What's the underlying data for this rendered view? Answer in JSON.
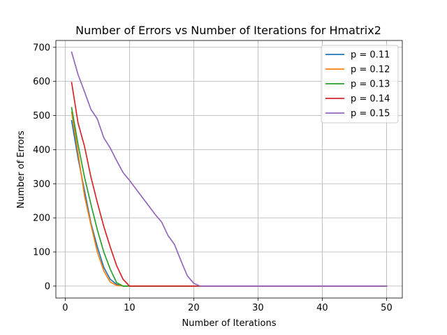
{
  "chart_data": {
    "type": "line",
    "title": "Number of Errors vs Number of Iterations for Hmatrix2",
    "xlabel": "Number of Iterations",
    "ylabel": "Number of Errors",
    "xlim": [
      -1.45,
      52.45
    ],
    "ylim": [
      -35,
      720
    ],
    "xticks": [
      0,
      10,
      20,
      30,
      40,
      50
    ],
    "yticks": [
      0,
      100,
      200,
      300,
      400,
      500,
      600,
      700
    ],
    "grid": true,
    "legend_position": "top-right",
    "series": [
      {
        "name": "p = 0.11",
        "color": "#1f77b4",
        "x": [
          1,
          2,
          3,
          4,
          5,
          6,
          7,
          8,
          9,
          10,
          11,
          12,
          13,
          14,
          15,
          16,
          17,
          18,
          19,
          20,
          21,
          22,
          23,
          24,
          25,
          26,
          27,
          28,
          29,
          30,
          31,
          32,
          33,
          34,
          35,
          36,
          37,
          38,
          39,
          40,
          41,
          42,
          43,
          44,
          45,
          46,
          47,
          48,
          49,
          50
        ],
        "y": [
          485,
          375,
          280,
          185,
          115,
          55,
          20,
          5,
          0,
          0,
          0,
          0,
          0,
          0,
          0,
          0,
          0,
          0,
          0,
          0,
          0,
          0,
          0,
          0,
          0,
          0,
          0,
          0,
          0,
          0,
          0,
          0,
          0,
          0,
          0,
          0,
          0,
          0,
          0,
          0,
          0,
          0,
          0,
          0,
          0,
          0,
          0,
          0,
          0,
          0
        ]
      },
      {
        "name": "p = 0.12",
        "color": "#ff7f0e",
        "x": [
          1,
          2,
          3,
          4,
          5,
          6,
          7,
          8,
          9,
          10,
          11,
          12,
          13,
          14,
          15,
          16,
          17,
          18,
          19,
          20,
          21,
          22,
          23,
          24,
          25,
          26,
          27,
          28,
          29,
          30,
          31,
          32,
          33,
          34,
          35,
          36,
          37,
          38,
          39,
          40,
          41,
          42,
          43,
          44,
          45,
          46,
          47,
          48,
          49,
          50
        ],
        "y": [
          510,
          390,
          265,
          180,
          100,
          45,
          12,
          2,
          0,
          0,
          0,
          0,
          0,
          0,
          0,
          0,
          0,
          0,
          0,
          0,
          0,
          0,
          0,
          0,
          0,
          0,
          0,
          0,
          0,
          0,
          0,
          0,
          0,
          0,
          0,
          0,
          0,
          0,
          0,
          0,
          0,
          0,
          0,
          0,
          0,
          0,
          0,
          0,
          0,
          0
        ]
      },
      {
        "name": "p = 0.13",
        "color": "#2ca02c",
        "x": [
          1,
          2,
          3,
          4,
          5,
          6,
          7,
          8,
          9,
          10,
          11,
          12,
          13,
          14,
          15,
          16,
          17,
          18,
          19,
          20,
          21,
          22,
          23,
          24,
          25,
          26,
          27,
          28,
          29,
          30,
          31,
          32,
          33,
          34,
          35,
          36,
          37,
          38,
          39,
          40,
          41,
          42,
          43,
          44,
          45,
          46,
          47,
          48,
          49,
          50
        ],
        "y": [
          523,
          415,
          320,
          240,
          165,
          100,
          50,
          10,
          0,
          0,
          0,
          0,
          0,
          0,
          0,
          0,
          0,
          0,
          0,
          0,
          0,
          0,
          0,
          0,
          0,
          0,
          0,
          0,
          0,
          0,
          0,
          0,
          0,
          0,
          0,
          0,
          0,
          0,
          0,
          0,
          0,
          0,
          0,
          0,
          0,
          0,
          0,
          0,
          0,
          0
        ]
      },
      {
        "name": "p = 0.14",
        "color": "#d62728",
        "x": [
          1,
          2,
          3,
          4,
          5,
          6,
          7,
          8,
          9,
          10,
          11,
          12,
          13,
          14,
          15,
          16,
          17,
          18,
          19,
          20,
          21,
          22,
          23,
          24,
          25,
          26,
          27,
          28,
          29,
          30,
          31,
          32,
          33,
          34,
          35,
          36,
          37,
          38,
          39,
          40,
          41,
          42,
          43,
          44,
          45,
          46,
          47,
          48,
          49,
          50
        ],
        "y": [
          597,
          478,
          410,
          320,
          245,
          175,
          115,
          60,
          20,
          0,
          0,
          0,
          0,
          0,
          0,
          0,
          0,
          0,
          0,
          0,
          0,
          0,
          0,
          0,
          0,
          0,
          0,
          0,
          0,
          0,
          0,
          0,
          0,
          0,
          0,
          0,
          0,
          0,
          0,
          0,
          0,
          0,
          0,
          0,
          0,
          0,
          0,
          0,
          0,
          0
        ]
      },
      {
        "name": "p = 0.15",
        "color": "#9467bd",
        "x": [
          1,
          2,
          3,
          4,
          5,
          6,
          7,
          8,
          9,
          10,
          11,
          12,
          13,
          14,
          15,
          16,
          17,
          18,
          19,
          20,
          21,
          22,
          23,
          24,
          25,
          26,
          27,
          28,
          29,
          30,
          31,
          32,
          33,
          34,
          35,
          36,
          37,
          38,
          39,
          40,
          41,
          42,
          43,
          44,
          45,
          46,
          47,
          48,
          49,
          50
        ],
        "y": [
          686,
          620,
          570,
          518,
          490,
          435,
          405,
          368,
          333,
          310,
          285,
          260,
          235,
          210,
          188,
          148,
          122,
          75,
          30,
          8,
          0,
          0,
          0,
          0,
          0,
          0,
          0,
          0,
          0,
          0,
          0,
          0,
          0,
          0,
          0,
          0,
          0,
          0,
          0,
          0,
          0,
          0,
          0,
          0,
          0,
          0,
          0,
          0,
          0,
          0
        ]
      }
    ]
  }
}
